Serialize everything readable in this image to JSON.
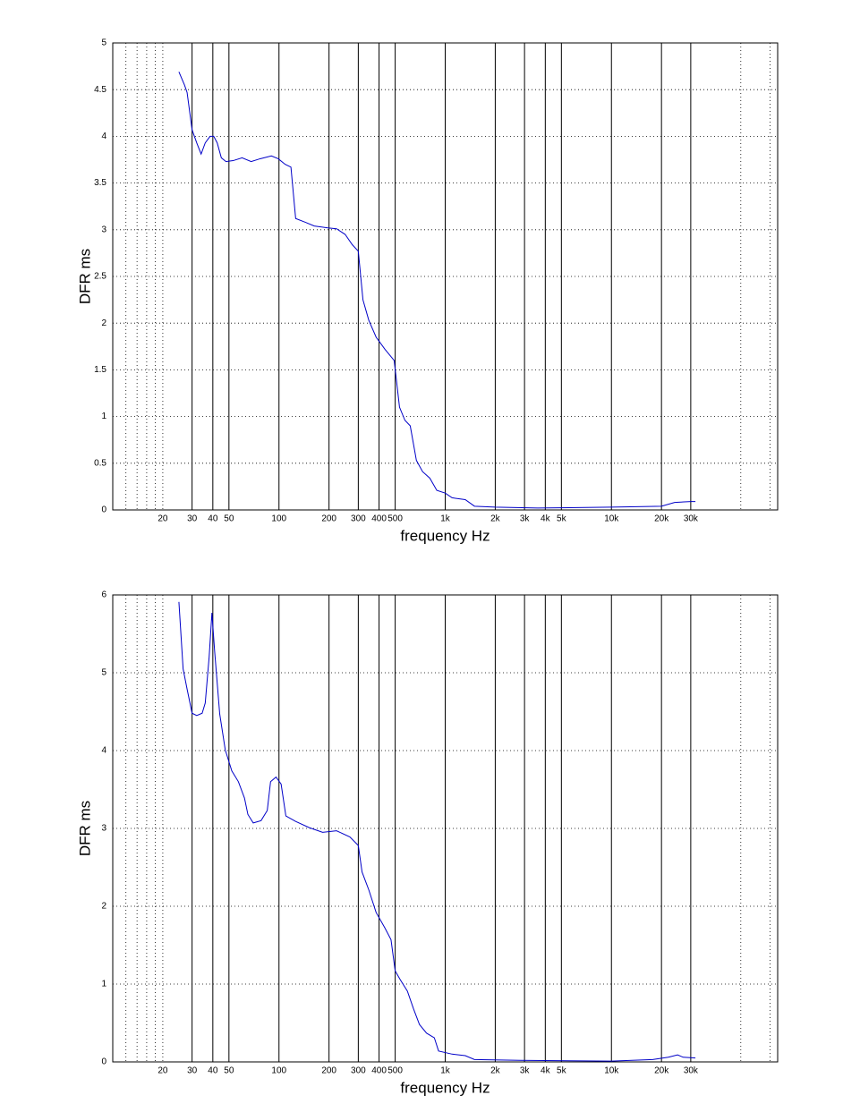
{
  "chart_data": [
    {
      "type": "line",
      "xlabel": "frequency   Hz",
      "ylabel": "DFR ms",
      "xscale": "log",
      "grid": true,
      "color": "#0000c8",
      "xlim": [
        10,
        100000
      ],
      "ylim": [
        0,
        5
      ],
      "xticks": [
        20,
        30,
        40,
        50,
        100,
        200,
        300,
        400,
        500,
        {
          "value": 1000,
          "label": "1k"
        },
        {
          "value": 2000,
          "label": "2k"
        },
        {
          "value": 3000,
          "label": "3k"
        },
        {
          "value": 4000,
          "label": "4k"
        },
        {
          "value": 5000,
          "label": "5k"
        },
        {
          "value": 10000,
          "label": "10k"
        },
        {
          "value": 20000,
          "label": "20k"
        },
        {
          "value": 30000,
          "label": "30k"
        }
      ],
      "minor_xgrid": [
        12,
        14,
        16,
        18,
        20,
        60000,
        90000
      ],
      "yticks": [
        0,
        0.5,
        1,
        1.5,
        2,
        2.5,
        3,
        3.5,
        4,
        4.5,
        5
      ],
      "x": [
        25,
        27,
        28,
        30,
        32,
        34,
        36,
        38.5,
        40.5,
        42.5,
        45,
        48,
        53,
        60,
        68,
        77,
        90,
        99,
        109,
        118,
        126,
        144,
        163,
        197,
        222,
        250,
        276,
        300,
        320,
        347,
        384,
        434,
        493,
        531,
        572,
        616,
        671,
        731,
        808,
        890,
        1000,
        1100,
        1320,
        1500,
        2000,
        3600,
        10000,
        20000,
        24000,
        30000,
        32000
      ],
      "values": [
        4.69,
        4.55,
        4.47,
        4.07,
        3.93,
        3.81,
        3.93,
        4.0,
        4.0,
        3.93,
        3.77,
        3.73,
        3.74,
        3.77,
        3.73,
        3.76,
        3.79,
        3.76,
        3.7,
        3.67,
        3.12,
        3.08,
        3.04,
        3.02,
        3.01,
        2.95,
        2.84,
        2.77,
        2.25,
        2.03,
        1.85,
        1.72,
        1.6,
        1.1,
        0.96,
        0.9,
        0.53,
        0.41,
        0.34,
        0.21,
        0.18,
        0.13,
        0.11,
        0.04,
        0.03,
        0.02,
        0.03,
        0.04,
        0.08,
        0.09,
        0.09
      ]
    },
    {
      "type": "line",
      "xlabel": "frequency   Hz",
      "ylabel": "DFR ms",
      "xscale": "log",
      "grid": true,
      "color": "#0000c8",
      "xlim": [
        10,
        100000
      ],
      "ylim": [
        0,
        6
      ],
      "xticks": [
        20,
        30,
        40,
        50,
        100,
        200,
        300,
        400,
        500,
        {
          "value": 1000,
          "label": "1k"
        },
        {
          "value": 2000,
          "label": "2k"
        },
        {
          "value": 3000,
          "label": "3k"
        },
        {
          "value": 4000,
          "label": "4k"
        },
        {
          "value": 5000,
          "label": "5k"
        },
        {
          "value": 10000,
          "label": "10k"
        },
        {
          "value": 20000,
          "label": "20k"
        },
        {
          "value": 30000,
          "label": "30k"
        }
      ],
      "minor_xgrid": [
        12,
        14,
        16,
        18,
        20,
        60000,
        90000
      ],
      "yticks": [
        0,
        1,
        2,
        3,
        4,
        5,
        6
      ],
      "x": [
        25,
        26.5,
        28,
        30,
        32,
        34.5,
        36,
        38,
        39.5,
        41,
        44,
        47.5,
        52,
        57,
        62,
        65,
        70,
        78,
        85,
        89,
        96,
        103,
        110,
        126,
        152,
        183,
        222,
        267,
        300,
        316,
        347,
        384,
        434,
        472,
        500,
        535,
        592,
        645,
        700,
        772,
        860,
        912,
        1100,
        1320,
        1500,
        2800,
        10000,
        17700,
        22000,
        25000,
        27000,
        32000
      ],
      "values": [
        5.91,
        5.05,
        4.79,
        4.48,
        4.45,
        4.48,
        4.61,
        5.2,
        5.77,
        5.28,
        4.47,
        4.01,
        3.74,
        3.6,
        3.39,
        3.18,
        3.07,
        3.1,
        3.23,
        3.6,
        3.66,
        3.57,
        3.16,
        3.09,
        3.01,
        2.95,
        2.97,
        2.89,
        2.78,
        2.44,
        2.21,
        1.92,
        1.72,
        1.57,
        1.17,
        1.06,
        0.91,
        0.68,
        0.48,
        0.37,
        0.31,
        0.14,
        0.1,
        0.08,
        0.03,
        0.02,
        0.01,
        0.03,
        0.06,
        0.09,
        0.06,
        0.05
      ]
    }
  ]
}
